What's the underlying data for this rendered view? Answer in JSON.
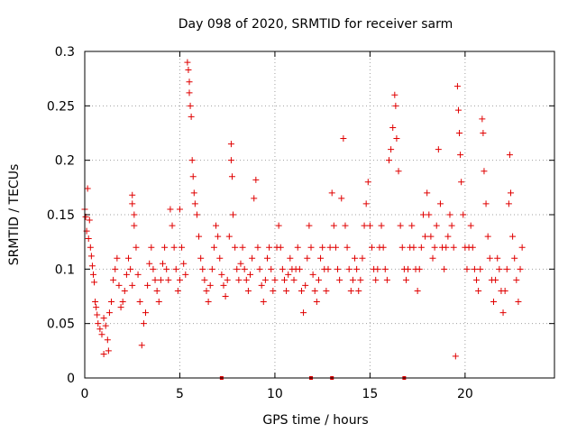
{
  "chart_data": {
    "type": "scatter",
    "title": "Day 098 of 2020, SRMTID for receiver sarm",
    "xlabel": "GPS time / hours",
    "ylabel": "SRMTID / TECUs",
    "xlim": [
      0,
      24.7
    ],
    "ylim": [
      0,
      0.3
    ],
    "xticks": [
      0,
      5,
      10,
      15,
      20
    ],
    "xtick_labels": [
      "0",
      "5",
      "10",
      "15",
      "20"
    ],
    "yticks": [
      0,
      0.05,
      0.1,
      0.15,
      0.2,
      0.25,
      0.3
    ],
    "ytick_labels": [
      "0",
      "0.05",
      "0.1",
      "0.15",
      "0.2",
      "0.25",
      "0.3"
    ],
    "grid": true,
    "marker": "plus",
    "color": "#e00000",
    "series": [
      {
        "name": "SRMTID",
        "points": [
          [
            0.0,
            0.155
          ],
          [
            0.05,
            0.148
          ],
          [
            0.1,
            0.135
          ],
          [
            0.15,
            0.174
          ],
          [
            0.2,
            0.128
          ],
          [
            0.25,
            0.145
          ],
          [
            0.3,
            0.12
          ],
          [
            0.35,
            0.112
          ],
          [
            0.4,
            0.103
          ],
          [
            0.45,
            0.095
          ],
          [
            0.5,
            0.088
          ],
          [
            0.55,
            0.07
          ],
          [
            0.6,
            0.065
          ],
          [
            0.65,
            0.058
          ],
          [
            0.7,
            0.05
          ],
          [
            0.8,
            0.045
          ],
          [
            0.9,
            0.04
          ],
          [
            1.0,
            0.055
          ],
          [
            1.0,
            0.022
          ],
          [
            1.1,
            0.048
          ],
          [
            1.2,
            0.035
          ],
          [
            1.25,
            0.025
          ],
          [
            1.3,
            0.06
          ],
          [
            1.4,
            0.07
          ],
          [
            1.5,
            0.09
          ],
          [
            1.6,
            0.1
          ],
          [
            1.7,
            0.11
          ],
          [
            1.8,
            0.085
          ],
          [
            1.9,
            0.065
          ],
          [
            2.0,
            0.07
          ],
          [
            2.1,
            0.08
          ],
          [
            2.2,
            0.095
          ],
          [
            2.3,
            0.11
          ],
          [
            2.4,
            0.1
          ],
          [
            2.5,
            0.085
          ],
          [
            2.5,
            0.168
          ],
          [
            2.5,
            0.16
          ],
          [
            2.6,
            0.15
          ],
          [
            2.6,
            0.14
          ],
          [
            2.7,
            0.12
          ],
          [
            2.8,
            0.095
          ],
          [
            2.9,
            0.07
          ],
          [
            3.0,
            0.03
          ],
          [
            3.1,
            0.05
          ],
          [
            3.2,
            0.06
          ],
          [
            3.3,
            0.085
          ],
          [
            3.4,
            0.105
          ],
          [
            3.5,
            0.12
          ],
          [
            3.6,
            0.1
          ],
          [
            3.7,
            0.09
          ],
          [
            3.8,
            0.08
          ],
          [
            3.9,
            0.07
          ],
          [
            4.0,
            0.09
          ],
          [
            4.1,
            0.105
          ],
          [
            4.2,
            0.12
          ],
          [
            4.3,
            0.1
          ],
          [
            4.4,
            0.09
          ],
          [
            4.5,
            0.155
          ],
          [
            4.6,
            0.14
          ],
          [
            4.7,
            0.12
          ],
          [
            4.8,
            0.1
          ],
          [
            4.9,
            0.08
          ],
          [
            5.0,
            0.09
          ],
          [
            5.0,
            0.155
          ],
          [
            5.1,
            0.12
          ],
          [
            5.2,
            0.105
          ],
          [
            5.3,
            0.095
          ],
          [
            5.4,
            0.29
          ],
          [
            5.45,
            0.283
          ],
          [
            5.5,
            0.272
          ],
          [
            5.5,
            0.262
          ],
          [
            5.55,
            0.25
          ],
          [
            5.6,
            0.24
          ],
          [
            5.65,
            0.2
          ],
          [
            5.7,
            0.185
          ],
          [
            5.75,
            0.17
          ],
          [
            5.8,
            0.16
          ],
          [
            5.9,
            0.15
          ],
          [
            6.0,
            0.13
          ],
          [
            6.1,
            0.11
          ],
          [
            6.2,
            0.1
          ],
          [
            6.3,
            0.09
          ],
          [
            6.4,
            0.08
          ],
          [
            6.5,
            0.07
          ],
          [
            6.6,
            0.085
          ],
          [
            6.7,
            0.1
          ],
          [
            6.8,
            0.12
          ],
          [
            6.9,
            0.14
          ],
          [
            7.0,
            0.13
          ],
          [
            7.1,
            0.11
          ],
          [
            7.2,
            0.095
          ],
          [
            7.3,
            0.085
          ],
          [
            7.4,
            0.075
          ],
          [
            7.5,
            0.09
          ],
          [
            7.6,
            0.13
          ],
          [
            7.7,
            0.2
          ],
          [
            7.7,
            0.215
          ],
          [
            7.75,
            0.185
          ],
          [
            7.8,
            0.15
          ],
          [
            7.9,
            0.12
          ],
          [
            8.0,
            0.1
          ],
          [
            8.1,
            0.09
          ],
          [
            8.2,
            0.105
          ],
          [
            8.3,
            0.12
          ],
          [
            8.4,
            0.1
          ],
          [
            8.5,
            0.09
          ],
          [
            8.6,
            0.08
          ],
          [
            8.7,
            0.095
          ],
          [
            8.8,
            0.11
          ],
          [
            8.9,
            0.165
          ],
          [
            9.0,
            0.182
          ],
          [
            9.1,
            0.12
          ],
          [
            9.2,
            0.1
          ],
          [
            9.3,
            0.085
          ],
          [
            9.4,
            0.07
          ],
          [
            9.5,
            0.09
          ],
          [
            9.6,
            0.11
          ],
          [
            9.7,
            0.12
          ],
          [
            9.8,
            0.1
          ],
          [
            9.9,
            0.08
          ],
          [
            10.0,
            0.09
          ],
          [
            10.1,
            0.12
          ],
          [
            10.2,
            0.14
          ],
          [
            10.3,
            0.12
          ],
          [
            10.4,
            0.1
          ],
          [
            10.5,
            0.09
          ],
          [
            10.6,
            0.08
          ],
          [
            10.7,
            0.095
          ],
          [
            10.8,
            0.11
          ],
          [
            10.9,
            0.1
          ],
          [
            11.0,
            0.09
          ],
          [
            11.1,
            0.1
          ],
          [
            11.2,
            0.12
          ],
          [
            11.3,
            0.1
          ],
          [
            11.4,
            0.08
          ],
          [
            11.5,
            0.06
          ],
          [
            11.6,
            0.085
          ],
          [
            11.7,
            0.11
          ],
          [
            11.8,
            0.14
          ],
          [
            11.9,
            0.12
          ],
          [
            12.0,
            0.095
          ],
          [
            12.1,
            0.08
          ],
          [
            12.2,
            0.07
          ],
          [
            12.3,
            0.09
          ],
          [
            12.4,
            0.11
          ],
          [
            12.5,
            0.12
          ],
          [
            12.6,
            0.1
          ],
          [
            12.7,
            0.08
          ],
          [
            12.8,
            0.1
          ],
          [
            12.9,
            0.12
          ],
          [
            13.0,
            0.17
          ],
          [
            13.1,
            0.14
          ],
          [
            13.2,
            0.12
          ],
          [
            13.3,
            0.1
          ],
          [
            13.4,
            0.09
          ],
          [
            13.5,
            0.165
          ],
          [
            13.6,
            0.22
          ],
          [
            13.7,
            0.14
          ],
          [
            13.8,
            0.12
          ],
          [
            13.9,
            0.1
          ],
          [
            14.0,
            0.08
          ],
          [
            14.1,
            0.09
          ],
          [
            14.2,
            0.11
          ],
          [
            14.3,
            0.1
          ],
          [
            14.4,
            0.08
          ],
          [
            14.5,
            0.09
          ],
          [
            14.6,
            0.11
          ],
          [
            14.7,
            0.14
          ],
          [
            14.8,
            0.16
          ],
          [
            14.9,
            0.18
          ],
          [
            15.0,
            0.14
          ],
          [
            15.1,
            0.12
          ],
          [
            15.2,
            0.1
          ],
          [
            15.3,
            0.09
          ],
          [
            15.4,
            0.1
          ],
          [
            15.5,
            0.12
          ],
          [
            15.6,
            0.14
          ],
          [
            15.7,
            0.12
          ],
          [
            15.8,
            0.1
          ],
          [
            15.9,
            0.09
          ],
          [
            16.0,
            0.2
          ],
          [
            16.1,
            0.21
          ],
          [
            16.2,
            0.23
          ],
          [
            16.3,
            0.26
          ],
          [
            16.35,
            0.25
          ],
          [
            16.4,
            0.22
          ],
          [
            16.5,
            0.19
          ],
          [
            16.6,
            0.14
          ],
          [
            16.7,
            0.12
          ],
          [
            16.8,
            0.1
          ],
          [
            16.9,
            0.09
          ],
          [
            17.0,
            0.1
          ],
          [
            17.1,
            0.12
          ],
          [
            17.2,
            0.14
          ],
          [
            17.3,
            0.12
          ],
          [
            17.4,
            0.1
          ],
          [
            17.5,
            0.08
          ],
          [
            17.6,
            0.1
          ],
          [
            17.7,
            0.12
          ],
          [
            17.8,
            0.15
          ],
          [
            17.9,
            0.13
          ],
          [
            18.0,
            0.17
          ],
          [
            18.1,
            0.15
          ],
          [
            18.2,
            0.13
          ],
          [
            18.3,
            0.11
          ],
          [
            18.4,
            0.12
          ],
          [
            18.5,
            0.14
          ],
          [
            18.6,
            0.21
          ],
          [
            18.7,
            0.16
          ],
          [
            18.8,
            0.12
          ],
          [
            18.9,
            0.1
          ],
          [
            19.0,
            0.12
          ],
          [
            19.1,
            0.13
          ],
          [
            19.2,
            0.15
          ],
          [
            19.3,
            0.14
          ],
          [
            19.4,
            0.12
          ],
          [
            19.5,
            0.02
          ],
          [
            19.6,
            0.268
          ],
          [
            19.65,
            0.246
          ],
          [
            19.7,
            0.225
          ],
          [
            19.75,
            0.205
          ],
          [
            19.8,
            0.18
          ],
          [
            19.9,
            0.15
          ],
          [
            20.0,
            0.12
          ],
          [
            20.1,
            0.1
          ],
          [
            20.2,
            0.12
          ],
          [
            20.3,
            0.14
          ],
          [
            20.4,
            0.12
          ],
          [
            20.5,
            0.1
          ],
          [
            20.6,
            0.09
          ],
          [
            20.7,
            0.08
          ],
          [
            20.8,
            0.1
          ],
          [
            20.9,
            0.238
          ],
          [
            20.95,
            0.225
          ],
          [
            21.0,
            0.19
          ],
          [
            21.1,
            0.16
          ],
          [
            21.2,
            0.13
          ],
          [
            21.3,
            0.11
          ],
          [
            21.4,
            0.09
          ],
          [
            21.5,
            0.07
          ],
          [
            21.6,
            0.09
          ],
          [
            21.7,
            0.11
          ],
          [
            21.8,
            0.1
          ],
          [
            21.9,
            0.08
          ],
          [
            22.0,
            0.06
          ],
          [
            22.1,
            0.08
          ],
          [
            22.2,
            0.1
          ],
          [
            22.3,
            0.16
          ],
          [
            22.35,
            0.205
          ],
          [
            22.4,
            0.17
          ],
          [
            22.5,
            0.13
          ],
          [
            22.6,
            0.11
          ],
          [
            22.7,
            0.09
          ],
          [
            22.8,
            0.07
          ],
          [
            22.9,
            0.1
          ],
          [
            23.0,
            0.12
          ]
        ]
      }
    ],
    "zero_line_markers": [
      7.2,
      11.9,
      13.0,
      16.8
    ]
  }
}
